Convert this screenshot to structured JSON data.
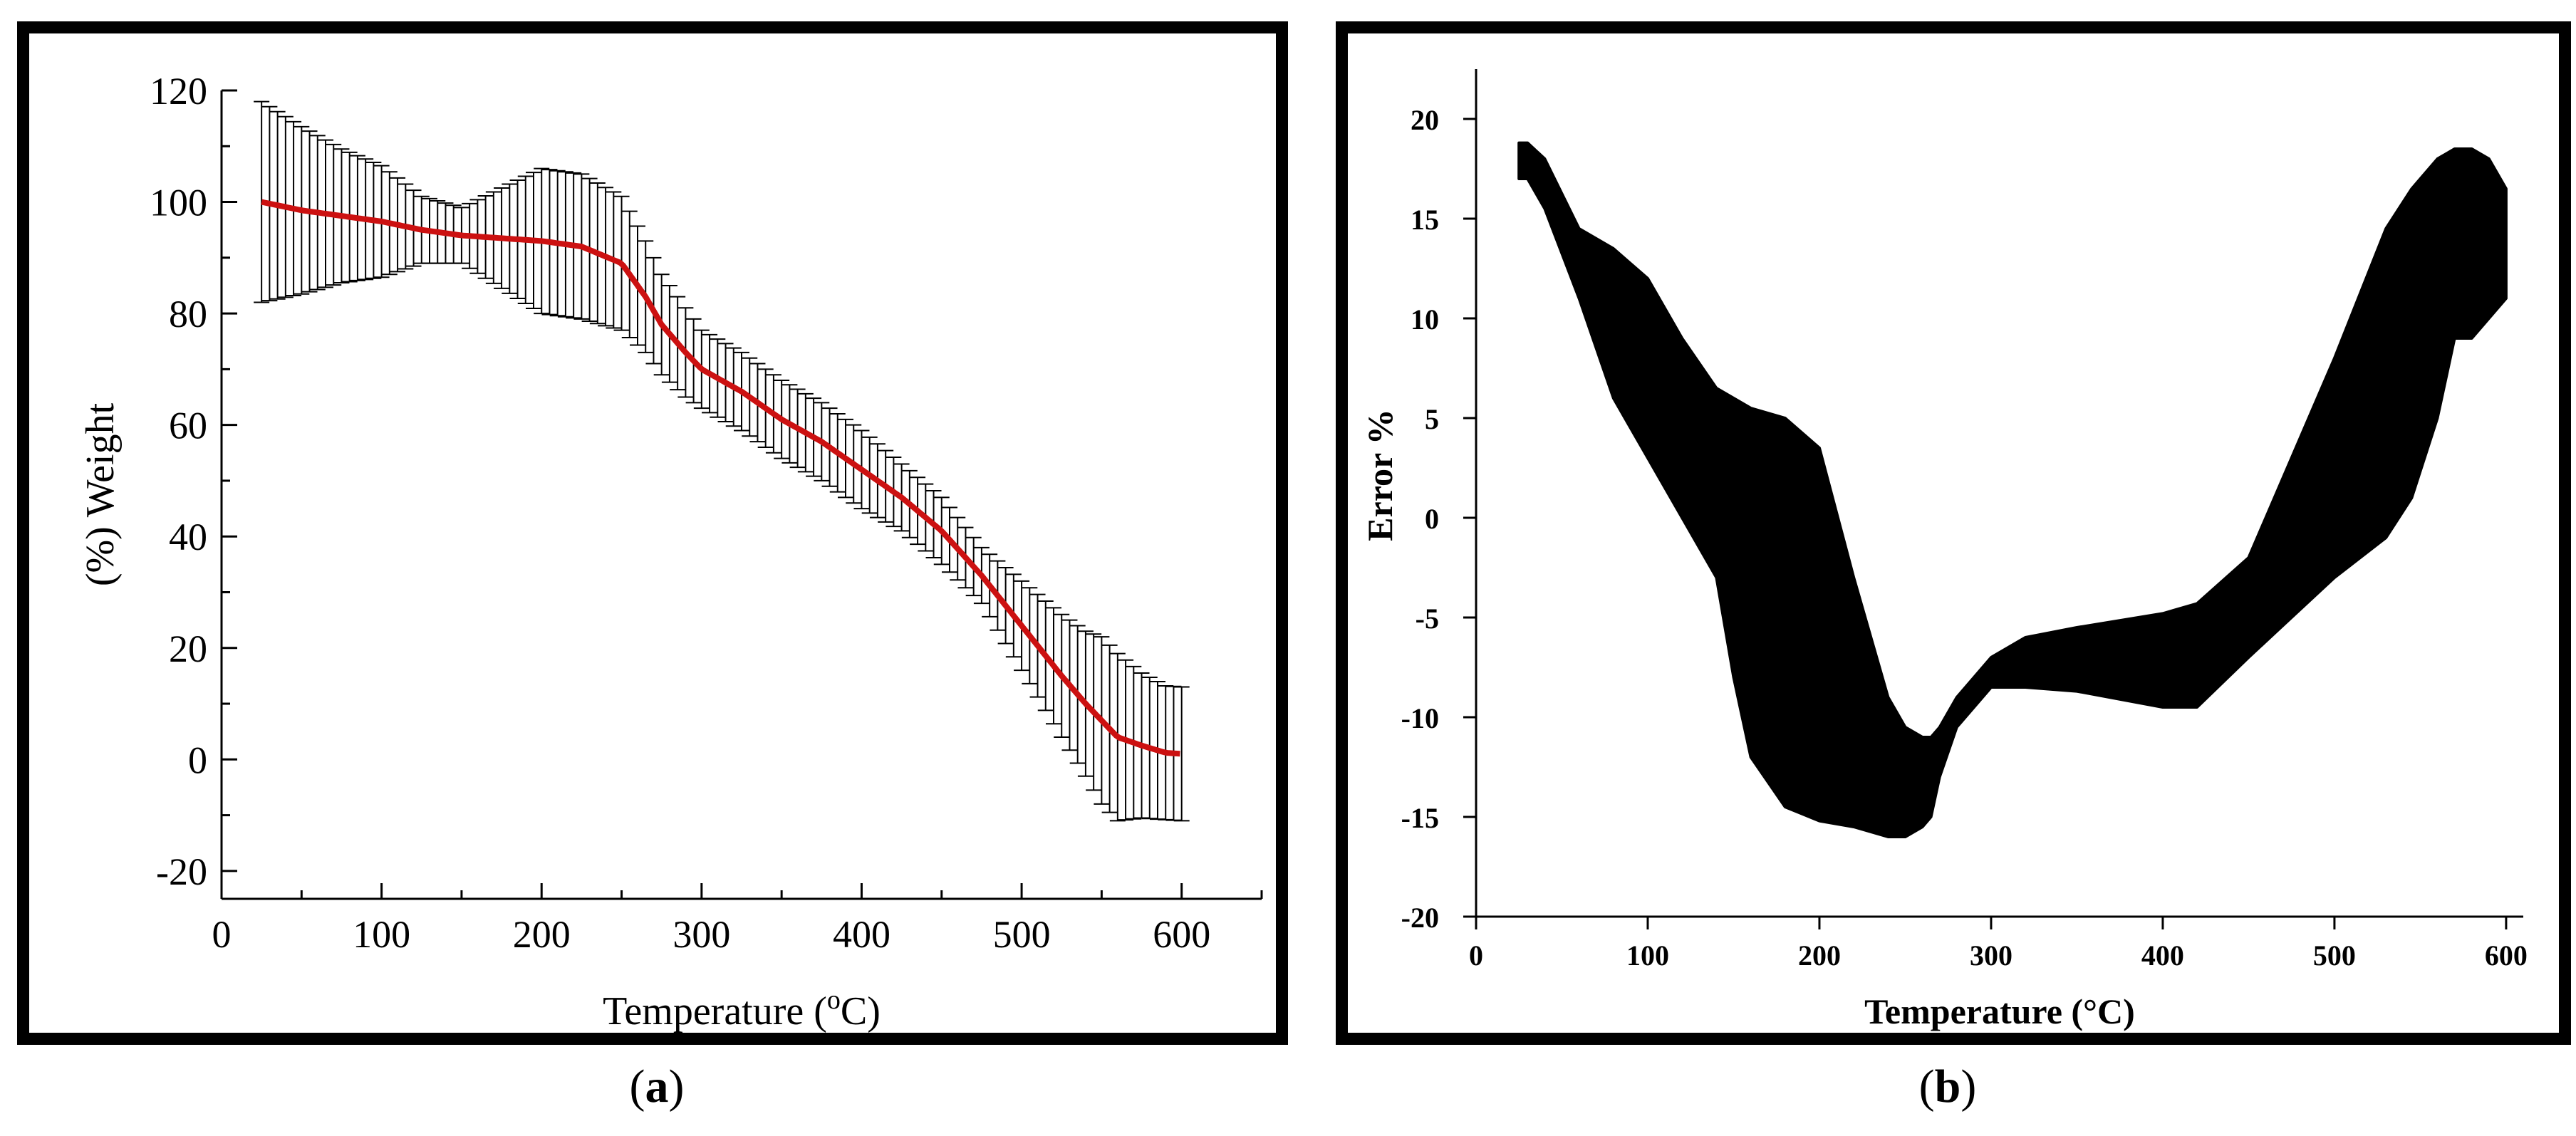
{
  "figure": {
    "captions": {
      "a": "a",
      "b": "b"
    }
  },
  "colors": {
    "frame": "#000000",
    "mean_curve": "#cc1111",
    "error_bars": "#000000",
    "band": "#000000"
  },
  "chart_data": [
    {
      "id": "a",
      "type": "line",
      "xlabel": "Temperature (°C)",
      "ylabel": "(%) Weight",
      "xlim": [
        0,
        650
      ],
      "ylim": [
        -25,
        120
      ],
      "x_ticks": [
        0,
        100,
        200,
        300,
        400,
        500,
        600
      ],
      "y_ticks": [
        -20,
        0,
        20,
        40,
        60,
        80,
        100,
        120
      ],
      "series": [
        {
          "x": [
            25,
            50,
            75,
            100,
            125,
            150,
            175,
            200,
            225,
            250,
            265,
            275,
            290,
            300,
            325,
            350,
            375,
            400,
            425,
            450,
            475,
            500,
            525,
            540,
            550,
            560,
            575,
            590,
            600
          ],
          "y": [
            100,
            98.5,
            97.5,
            96.5,
            95,
            94,
            93.5,
            93,
            92,
            89,
            83,
            78,
            73,
            70,
            66,
            61,
            57,
            52,
            47,
            41,
            33,
            24,
            15,
            10,
            7,
            4,
            2.5,
            1.2,
            1
          ],
          "error": [
            18,
            15,
            12,
            10,
            6,
            5,
            9,
            13,
            13,
            12,
            10,
            9,
            8,
            7,
            7,
            7,
            7,
            7,
            6,
            6,
            5,
            8,
            11,
            13,
            15,
            15,
            13,
            12,
            12
          ]
        }
      ]
    },
    {
      "id": "b",
      "type": "area",
      "xlabel": "Temperature (°C)",
      "ylabel": "Error %",
      "xlim": [
        0,
        610
      ],
      "ylim": [
        -20,
        22.5
      ],
      "x_ticks": [
        0,
        100,
        200,
        300,
        400,
        500,
        600
      ],
      "y_ticks": [
        -20,
        -15,
        -10,
        -5,
        0,
        5,
        10,
        15,
        20
      ],
      "series": [
        {
          "x": [
            25,
            30,
            40,
            60,
            80,
            100,
            120,
            140,
            150,
            160,
            180,
            200,
            220,
            240,
            250,
            260,
            265,
            270,
            280,
            300,
            320,
            350,
            400,
            420,
            450,
            500,
            530,
            545,
            560,
            570,
            580,
            590,
            600
          ],
          "upper": [
            18.8,
            18.8,
            18,
            14.5,
            13.5,
            12,
            9,
            6.5,
            6,
            5.5,
            5,
            3.5,
            -3,
            -9,
            -10.5,
            -11,
            -11,
            -10.5,
            -9,
            -7,
            -6,
            -5.5,
            -4.8,
            -4.3,
            -2,
            8,
            14.5,
            16.5,
            18,
            18.5,
            18.5,
            18,
            16.5
          ],
          "lower": [
            17,
            17,
            15.5,
            11,
            6,
            3,
            0,
            -3,
            -8,
            -12,
            -14.5,
            -15.2,
            -15.5,
            -16,
            -16,
            -15.5,
            -15,
            -13,
            -10.5,
            -8.5,
            -8.5,
            -8.7,
            -9.5,
            -9.5,
            -7,
            -3,
            -1,
            1,
            5,
            9,
            9,
            10,
            11
          ]
        }
      ]
    }
  ]
}
